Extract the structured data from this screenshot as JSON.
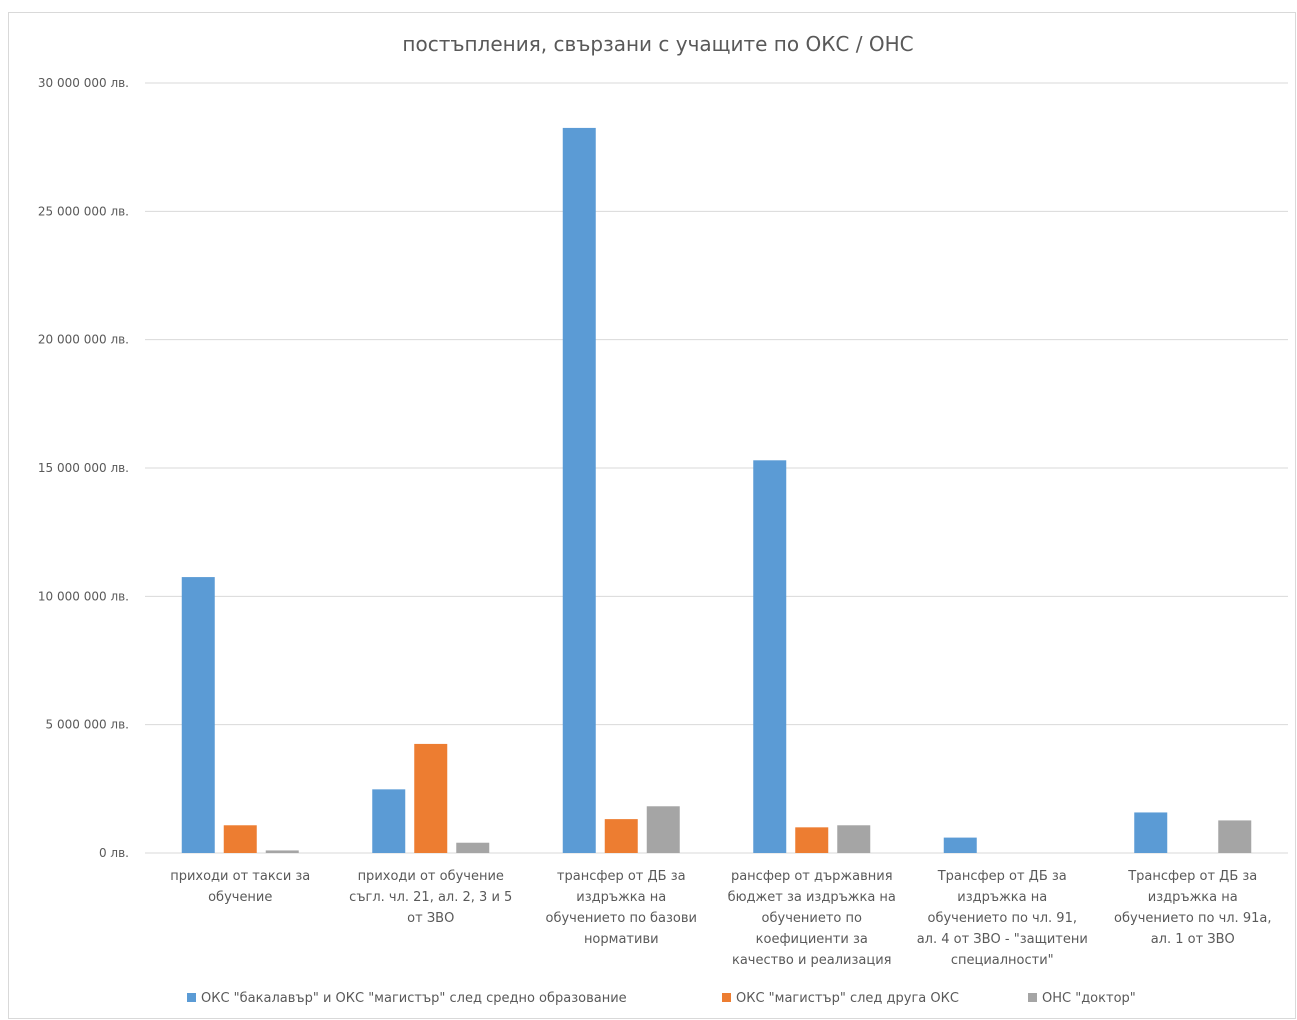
{
  "chart_data": {
    "type": "bar",
    "title": "постъпления, свързани с учащите по ОКС / ОНС",
    "xlabel": "",
    "ylabel": "",
    "ylim": [
      0,
      30000000
    ],
    "yticks": [
      {
        "value": 0,
        "label": "0 лв."
      },
      {
        "value": 5000000,
        "label": "5 000 000 лв."
      },
      {
        "value": 10000000,
        "label": "10 000 000 лв."
      },
      {
        "value": 15000000,
        "label": "15 000 000 лв."
      },
      {
        "value": 20000000,
        "label": "20 000 000 лв."
      },
      {
        "value": 25000000,
        "label": "25 000 000 лв."
      },
      {
        "value": 30000000,
        "label": "30 000 000 лв."
      }
    ],
    "grid": true,
    "legend_position": "bottom",
    "categories": [
      "приходи от такси за обучение",
      "приходи от обучение съгл. чл. 21, ал. 2, 3 и 5 от ЗВО",
      "трансфер от ДБ за издръжка на обучението по базови нормативи",
      "рансфер от държавния бюджет за издръжка на обучението по коефициенти за качество и реализация",
      "Трансфер от ДБ за издръжка на обучението по чл. 91, ал. 4 от ЗВО - \"защитени специалности\"",
      "Трансфер от ДБ за издръжка на обучението по чл. 91а, ал. 1 от ЗВО"
    ],
    "category_lines": [
      [
        "приходи от такси за",
        "обучение"
      ],
      [
        "приходи от обучение",
        "съгл. чл. 21, ал. 2, 3 и 5",
        "от ЗВО"
      ],
      [
        "трансфер от ДБ за",
        "издръжка на",
        "обучението по базови",
        "нормативи"
      ],
      [
        "рансфер от държавния",
        "бюджет за издръжка на",
        "обучението по",
        "коефициенти за",
        "качество и реализация"
      ],
      [
        "Трансфер от ДБ за",
        "издръжка на",
        "обучението по чл. 91,",
        "ал. 4 от ЗВО - \"защитени",
        "специалности\""
      ],
      [
        "Трансфер от ДБ за",
        "издръжка на",
        "обучението по чл. 91а,",
        "ал. 1 от ЗВО"
      ]
    ],
    "series": [
      {
        "name": "ОКС \"бакалавър\" и ОКС \"магистър\" след средно образование",
        "color": "#5b9bd5",
        "values": [
          10750000,
          2480000,
          28250000,
          15300000,
          600000,
          1580000
        ]
      },
      {
        "name": "ОКС \"магистър\" след друга ОКС",
        "color": "#ed7d31",
        "values": [
          1080000,
          4250000,
          1320000,
          1000000,
          0,
          0
        ]
      },
      {
        "name": "ОНС \"доктор\"",
        "color": "#a5a5a5",
        "values": [
          100000,
          400000,
          1820000,
          1080000,
          0,
          1270000
        ]
      }
    ]
  }
}
